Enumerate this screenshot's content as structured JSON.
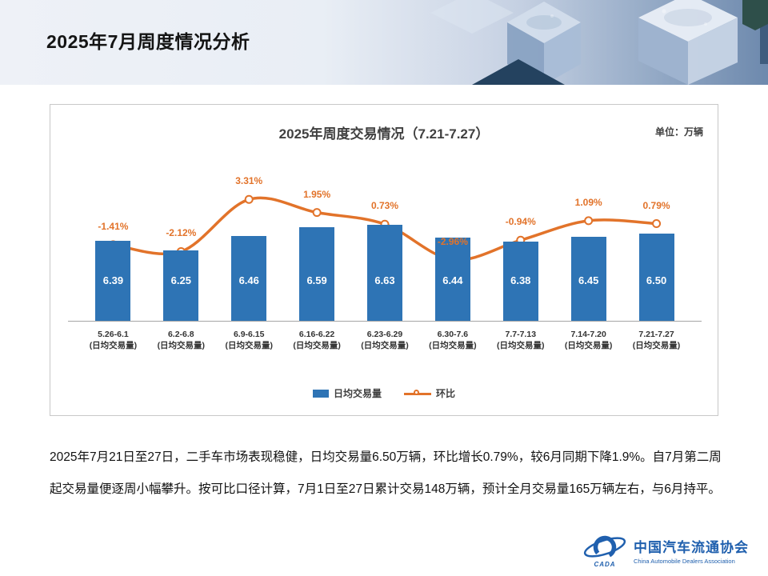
{
  "slide": {
    "title": "2025年7月周度情况分析"
  },
  "chart": {
    "title": "2025年周度交易情况（7.21-7.27）",
    "unit_label": "单位：万辆",
    "legend": {
      "bars": "日均交易量",
      "line": "环比"
    }
  },
  "chart_data": {
    "type": "bar",
    "title": "2025年周度交易情况（7.21-7.27）",
    "unit": "万辆",
    "categories": [
      "5.26-6.1",
      "6.2-6.8",
      "6.9-6.15",
      "6.16-6.22",
      "6.23-6.29",
      "6.30-7.6",
      "7.7-7.13",
      "7.14-7.20",
      "7.21-7.27"
    ],
    "category_sublabel": "(日均交易量)",
    "series": [
      {
        "name": "日均交易量",
        "type": "bar",
        "values": [
          6.39,
          6.25,
          6.46,
          6.59,
          6.63,
          6.44,
          6.38,
          6.45,
          6.5
        ]
      },
      {
        "name": "环比",
        "type": "line",
        "values_pct": [
          -1.41,
          -2.12,
          3.31,
          1.95,
          0.73,
          -2.96,
          -0.94,
          1.09,
          0.79
        ],
        "labels": [
          "-1.41%",
          "-2.12%",
          "3.31%",
          "1.95%",
          "0.73%",
          "-2.96%",
          "-0.94%",
          "1.09%",
          "0.79%"
        ]
      }
    ],
    "colors": {
      "bar": "#2e74b5",
      "line": "#e2732a"
    },
    "legend_position": "bottom",
    "grid": false,
    "bar_axis_range": [
      5.2,
      6.8
    ],
    "line_axis_range_pct": [
      -3.5,
      4.0
    ]
  },
  "body_text": {
    "paragraph": "2025年7月21日至27日，二手车市场表现稳健，日均交易量6.50万辆，环比增长0.79%，较6月同期下降1.9%。自7月第二周起交易量便逐周小幅攀升。按可比口径计算，7月1日至27日累计交易148万辆，预计全月交易量165万辆左右，与6月持平。"
  },
  "logo": {
    "acronym": "CADA",
    "name_cn": "中国汽车流通协会",
    "name_en": "China Automobile Dealers Association"
  }
}
